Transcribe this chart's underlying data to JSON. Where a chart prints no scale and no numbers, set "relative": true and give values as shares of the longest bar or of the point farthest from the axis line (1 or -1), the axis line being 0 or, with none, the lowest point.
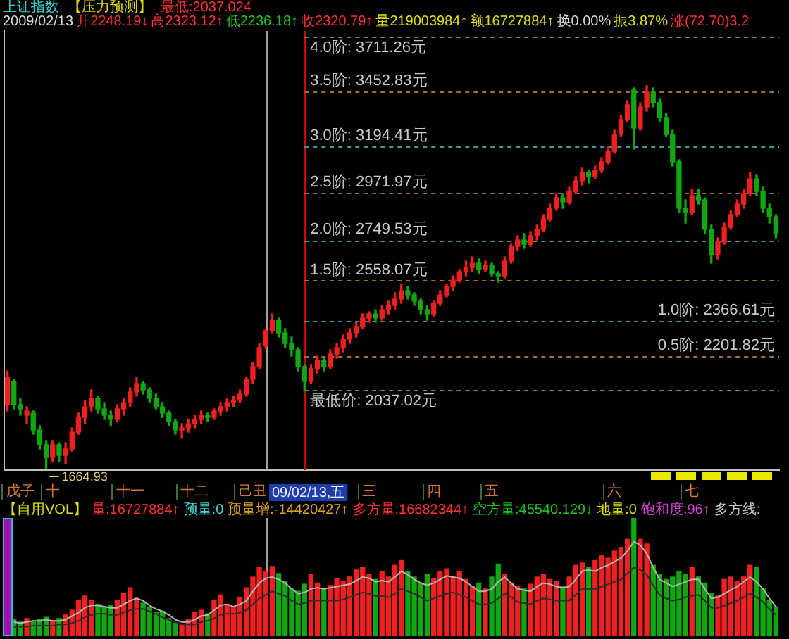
{
  "chart_data": [
    {
      "type": "candlestick",
      "title": "上证指数",
      "annotations": [
        "【压力预测】",
        "最低:2037.024",
        "2009/02/13",
        "开2248.19↓",
        "高2323.12↑",
        "低2236.18↑",
        "收2320.79↑",
        "量219003984↑",
        "额16727884↑",
        "换0.00%",
        "振3.87%",
        "涨(72.70)3.2",
        "09/02/13,五",
        "1664.93"
      ],
      "categories": [
        null,
        null,
        "戊子",
        null,
        null,
        null,
        null,
        "十",
        null,
        null,
        null,
        null,
        null,
        null,
        null,
        null,
        null,
        null,
        null,
        "十一",
        null,
        null,
        null,
        null,
        null,
        null,
        null,
        null,
        null,
        "十二",
        null,
        null,
        null,
        null,
        null,
        null,
        null,
        null,
        "己丑",
        null,
        null,
        null,
        null,
        null,
        null,
        null,
        null,
        null,
        null,
        null,
        null,
        null,
        null,
        null,
        null,
        null,
        "三",
        null,
        null,
        null,
        null,
        null,
        null,
        null,
        null,
        null,
        "四",
        null,
        null,
        null,
        null,
        null,
        null,
        null,
        null,
        "五",
        null,
        null,
        null,
        null,
        null,
        null,
        null,
        null,
        null,
        null,
        null,
        null,
        null,
        null,
        null,
        null,
        null,
        null,
        "六",
        null,
        null,
        null,
        null,
        null,
        null,
        null,
        null,
        null,
        null,
        null,
        "七",
        null,
        null,
        null,
        null,
        null,
        null,
        null,
        null,
        null,
        null,
        null,
        null,
        null
      ],
      "ohlc": [
        [
          1970,
          2130,
          1940,
          2100
        ],
        [
          2080,
          2090,
          1950,
          1970
        ],
        [
          1970,
          2000,
          1920,
          1950
        ],
        [
          1920,
          1960,
          1880,
          1940
        ],
        [
          1930,
          1940,
          1830,
          1850
        ],
        [
          1850,
          1870,
          1760,
          1780
        ],
        [
          1780,
          1800,
          1664.93,
          1720
        ],
        [
          1720,
          1800,
          1700,
          1780
        ],
        [
          1780,
          1790,
          1700,
          1730
        ],
        [
          1730,
          1790,
          1690,
          1760
        ],
        [
          1760,
          1860,
          1750,
          1840
        ],
        [
          1840,
          1930,
          1830,
          1910
        ],
        [
          1910,
          1990,
          1880,
          1960
        ],
        [
          1960,
          2040,
          1940,
          2000
        ],
        [
          2000,
          2010,
          1930,
          1950
        ],
        [
          1950,
          1980,
          1900,
          1920
        ],
        [
          1920,
          1940,
          1870,
          1900
        ],
        [
          1900,
          1970,
          1890,
          1950
        ],
        [
          1950,
          2000,
          1920,
          1980
        ],
        [
          1980,
          2050,
          1960,
          2030
        ],
        [
          2030,
          2100,
          2010,
          2070
        ],
        [
          2070,
          2080,
          2020,
          2040
        ],
        [
          2040,
          2050,
          1980,
          2000
        ],
        [
          2000,
          2020,
          1950,
          1960
        ],
        [
          1960,
          1980,
          1910,
          1930
        ],
        [
          1930,
          1940,
          1870,
          1890
        ],
        [
          1890,
          1900,
          1830,
          1850
        ],
        [
          1850,
          1880,
          1810,
          1860
        ],
        [
          1860,
          1900,
          1840,
          1880
        ],
        [
          1880,
          1920,
          1860,
          1900
        ],
        [
          1900,
          1940,
          1880,
          1920
        ],
        [
          1920,
          1930,
          1890,
          1910
        ],
        [
          1910,
          1950,
          1900,
          1940
        ],
        [
          1940,
          1980,
          1920,
          1960
        ],
        [
          1960,
          2000,
          1940,
          1980
        ],
        [
          1980,
          2010,
          1960,
          1990
        ],
        [
          1990,
          2040,
          1980,
          2020
        ],
        [
          2020,
          2100,
          2010,
          2090
        ],
        [
          2090,
          2170,
          2070,
          2150
        ],
        [
          2150,
          2260,
          2140,
          2240
        ],
        [
          2248.19,
          2323.12,
          2236.18,
          2320.79
        ],
        [
          2320,
          2400,
          2310,
          2370
        ],
        [
          2370,
          2380,
          2290,
          2310
        ],
        [
          2310,
          2330,
          2240,
          2260
        ],
        [
          2260,
          2290,
          2200,
          2230
        ],
        [
          2230,
          2240,
          2130,
          2150
        ],
        [
          2150,
          2160,
          2037.02,
          2080
        ],
        [
          2080,
          2160,
          2070,
          2140
        ],
        [
          2140,
          2200,
          2120,
          2180
        ],
        [
          2180,
          2190,
          2130,
          2150
        ],
        [
          2150,
          2230,
          2140,
          2210
        ],
        [
          2210,
          2260,
          2190,
          2240
        ],
        [
          2240,
          2300,
          2220,
          2280
        ],
        [
          2280,
          2330,
          2260,
          2310
        ],
        [
          2310,
          2360,
          2290,
          2340
        ],
        [
          2340,
          2400,
          2330,
          2380
        ],
        [
          2380,
          2410,
          2360,
          2400
        ],
        [
          2400,
          2420,
          2360,
          2380
        ],
        [
          2380,
          2440,
          2370,
          2420
        ],
        [
          2420,
          2460,
          2400,
          2440
        ],
        [
          2440,
          2500,
          2420,
          2470
        ],
        [
          2470,
          2540,
          2450,
          2510
        ],
        [
          2510,
          2530,
          2470,
          2490
        ],
        [
          2490,
          2500,
          2440,
          2460
        ],
        [
          2460,
          2470,
          2400,
          2420
        ],
        [
          2420,
          2440,
          2370,
          2400
        ],
        [
          2400,
          2460,
          2390,
          2450
        ],
        [
          2450,
          2510,
          2440,
          2490
        ],
        [
          2490,
          2540,
          2480,
          2530
        ],
        [
          2530,
          2580,
          2510,
          2560
        ],
        [
          2560,
          2610,
          2550,
          2600
        ],
        [
          2600,
          2650,
          2580,
          2620
        ],
        [
          2620,
          2670,
          2600,
          2640
        ],
        [
          2640,
          2660,
          2590,
          2610
        ],
        [
          2610,
          2650,
          2600,
          2630
        ],
        [
          2630,
          2640,
          2580,
          2590
        ],
        [
          2590,
          2600,
          2550,
          2580
        ],
        [
          2580,
          2670,
          2570,
          2650
        ],
        [
          2650,
          2730,
          2640,
          2720
        ],
        [
          2720,
          2770,
          2700,
          2750
        ],
        [
          2750,
          2780,
          2710,
          2730
        ],
        [
          2730,
          2790,
          2720,
          2770
        ],
        [
          2770,
          2820,
          2750,
          2800
        ],
        [
          2800,
          2870,
          2790,
          2850
        ],
        [
          2850,
          2920,
          2840,
          2900
        ],
        [
          2900,
          2970,
          2890,
          2950
        ],
        [
          2950,
          2970,
          2900,
          2930
        ],
        [
          2930,
          3000,
          2920,
          2980
        ],
        [
          2980,
          3050,
          2970,
          3030
        ],
        [
          3030,
          3090,
          3010,
          3070
        ],
        [
          3070,
          3080,
          3020,
          3050
        ],
        [
          3050,
          3100,
          3040,
          3080
        ],
        [
          3080,
          3140,
          3070,
          3120
        ],
        [
          3120,
          3190,
          3110,
          3170
        ],
        [
          3170,
          3270,
          3160,
          3250
        ],
        [
          3250,
          3340,
          3240,
          3320
        ],
        [
          3320,
          3410,
          3310,
          3390
        ],
        [
          3460,
          3470,
          3180,
          3280
        ],
        [
          3280,
          3400,
          3270,
          3380
        ],
        [
          3380,
          3480,
          3360,
          3450
        ],
        [
          3450,
          3470,
          3380,
          3400
        ],
        [
          3400,
          3420,
          3310,
          3330
        ],
        [
          3330,
          3350,
          3240,
          3250
        ],
        [
          3250,
          3270,
          3100,
          3120
        ],
        [
          3120,
          3130,
          2880,
          2900
        ],
        [
          2900,
          2940,
          2830,
          2880
        ],
        [
          2880,
          2990,
          2870,
          2960
        ],
        [
          2960,
          2990,
          2920,
          2940
        ],
        [
          2940,
          2950,
          2780,
          2800
        ],
        [
          2800,
          2820,
          2640,
          2680
        ],
        [
          2680,
          2760,
          2660,
          2740
        ],
        [
          2740,
          2830,
          2730,
          2810
        ],
        [
          2810,
          2890,
          2800,
          2870
        ],
        [
          2870,
          2940,
          2860,
          2920
        ],
        [
          2920,
          2990,
          2900,
          2970
        ],
        [
          2970,
          3070,
          2960,
          3040
        ],
        [
          3040,
          3060,
          2960,
          2980
        ],
        [
          2980,
          3000,
          2880,
          2900
        ],
        [
          2900,
          2920,
          2830,
          2860
        ],
        [
          2860,
          2870,
          2760,
          2780
        ]
      ],
      "colors": [
        "#f02020",
        "#10a810",
        "#10a810",
        "#f02020",
        "#10a810",
        "#10a810",
        "#10a810",
        "#f02020",
        "#10a810",
        "#f02020",
        "#f02020",
        "#f02020",
        "#f02020",
        "#f02020",
        "#10a810",
        "#10a810",
        "#10a810",
        "#f02020",
        "#f02020",
        "#f02020",
        "#f02020",
        "#10a810",
        "#10a810",
        "#10a810",
        "#10a810",
        "#10a810",
        "#10a810",
        "#f02020",
        "#f02020",
        "#f02020",
        "#f02020",
        "#10a810",
        "#f02020",
        "#f02020",
        "#f02020",
        "#f02020",
        "#f02020",
        "#f02020",
        "#f02020",
        "#f02020",
        "#f02020",
        "#f02020",
        "#10a810",
        "#10a810",
        "#10a810",
        "#10a810",
        "#10a810",
        "#f02020",
        "#f02020",
        "#10a810",
        "#f02020",
        "#f02020",
        "#f02020",
        "#f02020",
        "#f02020",
        "#f02020",
        "#f02020",
        "#10a810",
        "#f02020",
        "#f02020",
        "#f02020",
        "#f02020",
        "#10a810",
        "#10a810",
        "#10a810",
        "#10a810",
        "#f02020",
        "#f02020",
        "#f02020",
        "#f02020",
        "#f02020",
        "#f02020",
        "#f02020",
        "#10a810",
        "#f02020",
        "#10a810",
        "#10a810",
        "#f02020",
        "#f02020",
        "#f02020",
        "#10a810",
        "#f02020",
        "#f02020",
        "#f02020",
        "#f02020",
        "#f02020",
        "#10a810",
        "#f02020",
        "#f02020",
        "#f02020",
        "#10a810",
        "#f02020",
        "#f02020",
        "#f02020",
        "#f02020",
        "#f02020",
        "#f02020",
        "#10a810",
        "#f02020",
        "#f02020",
        "#10a810",
        "#10a810",
        "#10a810",
        "#10a810",
        "#10a810",
        "#10a810",
        "#f02020",
        "#10a810",
        "#10a810",
        "#10a810",
        "#f02020",
        "#f02020",
        "#f02020",
        "#f02020",
        "#f02020",
        "#f02020",
        "#10a810",
        "#10a810",
        "#10a810",
        "#10a810"
      ],
      "ylim": [
        1660,
        3740
      ],
      "ref_lines": [
        {
          "axis": "y",
          "value": 3711.26,
          "label": "4.0阶: 3711.26元",
          "color": "#3a9a9a",
          "line_style": "dashed"
        },
        {
          "axis": "y",
          "value": 3452.83,
          "label": "3.5阶: 3452.83元",
          "color": "#a07030",
          "line_style": "dashed"
        },
        {
          "axis": "y",
          "value": 3194.41,
          "label": "3.0阶: 3194.41元",
          "color": "#3a9a9a",
          "line_style": "dashed"
        },
        {
          "axis": "y",
          "value": 2971.97,
          "label": "2.5阶: 2971.97元",
          "color": "#a07030",
          "line_style": "dashed"
        },
        {
          "axis": "y",
          "value": 2749.53,
          "label": "2.0阶: 2749.53元",
          "color": "#3a9a9a",
          "line_style": "dashed"
        },
        {
          "axis": "y",
          "value": 2558.07,
          "label": "1.5阶: 2558.07元",
          "color": "#a07030",
          "line_style": "dashed"
        },
        {
          "axis": "y",
          "value": 2366.61,
          "label": "1.0阶: 2366.61元",
          "color": "#3a9a9a",
          "line_style": "dashed"
        },
        {
          "axis": "y",
          "value": 2201.82,
          "label": "0.5阶: 2201.82元",
          "color": "#a07030",
          "line_style": "dashed"
        },
        {
          "axis": "y",
          "value": 2037.02,
          "label": "最低价: 2037.02元",
          "color": "#3a9a9a",
          "line_style": "dashed"
        }
      ],
      "tick_labels": "x"
    },
    {
      "type": "bar",
      "title": "【自用VOL】",
      "annotations": [
        "量:16727884↑",
        "预量:0",
        "预量增:-14420427↑",
        "多方量:16682344↑",
        "空方量:45540.129↓",
        "地量:0",
        "饱和度:96↑",
        "多方线:"
      ],
      "categories": [
        null,
        null,
        "戊子",
        null,
        null,
        null,
        null,
        "十",
        null,
        null,
        null,
        null,
        null,
        null,
        null,
        null,
        null,
        null,
        null,
        "十一",
        null,
        null,
        null,
        null,
        null,
        null,
        null,
        null,
        null,
        "十二",
        null,
        null,
        null,
        null,
        null,
        null,
        null,
        null,
        "己丑",
        null,
        null,
        null,
        null,
        null,
        null,
        null,
        null,
        null,
        null,
        null,
        null,
        null,
        null,
        null,
        null,
        null,
        "三",
        null,
        null,
        null,
        null,
        null,
        null,
        null,
        null,
        null,
        "四",
        null,
        null,
        null,
        null,
        null,
        null,
        null,
        null,
        "五",
        null,
        null,
        null,
        null,
        null,
        null,
        null,
        null,
        null,
        null,
        null,
        null,
        null,
        null,
        null,
        null,
        null,
        null,
        "六",
        null,
        null,
        null,
        null,
        null,
        null,
        null,
        null,
        null,
        null,
        null,
        "七",
        null,
        null,
        null,
        null,
        null,
        null,
        null,
        null,
        null,
        null,
        null,
        null,
        null
      ],
      "series": [
        {
          "values": [
            null,
            0.14,
            0.12,
            0.15,
            0.12,
            0.14,
            0.16,
            0.13,
            0.15,
            0.18,
            0.22,
            0.3,
            0.34,
            0.3,
            0.27,
            0.24,
            0.26,
            0.3,
            0.36,
            0.41,
            0.32,
            0.28,
            0.24,
            0.2,
            0.21,
            0.15,
            0.11,
            0.1,
            0.14,
            0.2,
            0.22,
            0.19,
            0.3,
            0.35,
            0.27,
            0.24,
            0.33,
            0.41,
            0.5,
            0.58,
            0.55,
            0.59,
            0.53,
            0.46,
            0.4,
            0.38,
            0.44,
            0.52,
            0.45,
            0.4,
            0.43,
            0.49,
            0.46,
            0.5,
            0.56,
            0.58,
            0.52,
            0.48,
            0.55,
            0.5,
            0.6,
            0.64,
            0.55,
            0.5,
            0.45,
            0.52,
            0.49,
            0.55,
            0.57,
            0.5,
            0.55,
            0.48,
            0.42,
            0.45,
            0.4,
            0.5,
            0.61,
            0.52,
            0.45,
            0.42,
            0.4,
            0.44,
            0.5,
            0.52,
            0.48,
            0.46,
            0.42,
            0.5,
            0.6,
            0.62,
            0.58,
            0.64,
            0.68,
            0.66,
            0.72,
            0.75,
            0.82,
            1,
            0.82,
            0.78,
            0.6,
            0.52,
            0.48,
            0.5,
            0.55,
            0.52,
            0.58,
            0.5,
            0.45,
            0.36,
            0.34,
            0.48,
            0.5,
            0.46,
            0.5,
            0.6,
            0.58,
            0.4,
            0.3,
            0.25
          ],
          "colors": [
            "#f02020",
            "#10a810",
            "#10a810",
            "#f02020",
            "#10a810",
            "#10a810",
            "#10a810",
            "#f02020",
            "#10a810",
            "#f02020",
            "#f02020",
            "#f02020",
            "#f02020",
            "#f02020",
            "#10a810",
            "#10a810",
            "#10a810",
            "#f02020",
            "#f02020",
            "#f02020",
            "#f02020",
            "#10a810",
            "#10a810",
            "#10a810",
            "#10a810",
            "#10a810",
            "#10a810",
            "#f02020",
            "#f02020",
            "#f02020",
            "#f02020",
            "#10a810",
            "#f02020",
            "#f02020",
            "#f02020",
            "#f02020",
            "#f02020",
            "#f02020",
            "#f02020",
            "#f02020",
            "#f02020",
            "#f02020",
            "#10a810",
            "#10a810",
            "#10a810",
            "#10a810",
            "#10a810",
            "#f02020",
            "#f02020",
            "#10a810",
            "#f02020",
            "#f02020",
            "#f02020",
            "#f02020",
            "#f02020",
            "#f02020",
            "#f02020",
            "#10a810",
            "#f02020",
            "#f02020",
            "#f02020",
            "#f02020",
            "#10a810",
            "#10a810",
            "#10a810",
            "#10a810",
            "#f02020",
            "#f02020",
            "#f02020",
            "#f02020",
            "#f02020",
            "#f02020",
            "#f02020",
            "#10a810",
            "#f02020",
            "#10a810",
            "#10a810",
            "#f02020",
            "#f02020",
            "#f02020",
            "#10a810",
            "#f02020",
            "#f02020",
            "#f02020",
            "#f02020",
            "#f02020",
            "#10a810",
            "#f02020",
            "#f02020",
            "#f02020",
            "#10a810",
            "#f02020",
            "#f02020",
            "#f02020",
            "#f02020",
            "#f02020",
            "#f02020",
            "#10a810",
            "#f02020",
            "#f02020",
            "#10a810",
            "#10a810",
            "#10a810",
            "#10a810",
            "#10a810",
            "#10a810",
            "#f02020",
            "#10a810",
            "#10a810",
            "#10a810",
            "#f02020",
            "#f02020",
            "#f02020",
            "#f02020",
            "#f02020",
            "#f02020",
            "#10a810",
            "#10a810",
            "#10a810",
            "#10a810"
          ]
        },
        {
          "type": "line",
          "color": "#b4b4b4",
          "values": [
            null,
            0.12,
            0.11,
            0.12,
            0.13,
            0.13,
            0.14,
            0.13,
            0.13,
            0.14,
            0.17,
            0.2,
            0.24,
            0.26,
            0.26,
            0.25,
            0.24,
            0.24,
            0.27,
            0.3,
            0.32,
            0.3,
            0.26,
            0.23,
            0.21,
            0.18,
            0.14,
            0.12,
            0.12,
            0.14,
            0.17,
            0.18,
            0.22,
            0.26,
            0.27,
            0.25,
            0.27,
            0.3,
            0.38,
            0.45,
            0.49,
            0.5,
            0.48,
            0.45,
            0.4,
            0.36,
            0.37,
            0.4,
            0.41,
            0.4,
            0.41,
            0.42,
            0.43,
            0.44,
            0.47,
            0.5,
            0.49,
            0.46,
            0.47,
            0.46,
            0.5,
            0.55,
            0.52,
            0.48,
            0.45,
            0.43,
            0.45,
            0.48,
            0.51,
            0.5,
            0.49,
            0.46,
            0.42,
            0.38,
            0.38,
            0.4,
            0.46,
            0.5,
            0.45,
            0.4,
            0.39,
            0.38,
            0.42,
            0.45,
            0.44,
            0.42,
            0.41,
            0.42,
            0.48,
            0.55,
            0.56,
            0.55,
            0.58,
            0.6,
            0.63,
            0.66,
            0.72,
            0.8,
            0.77,
            0.7,
            0.58,
            0.48,
            0.45,
            0.42,
            0.44,
            0.46,
            0.48,
            0.48,
            0.4,
            0.32,
            0.33,
            0.36,
            0.39,
            0.42,
            0.46,
            0.5,
            0.46,
            0.4,
            0.32,
            0.25
          ]
        },
        {
          "type": "line",
          "color": "#2e2e2e",
          "values": [
            null,
            0.08,
            0.08,
            0.08,
            0.09,
            0.09,
            0.09,
            0.09,
            0.1,
            0.1,
            0.11,
            0.13,
            0.16,
            0.18,
            0.19,
            0.19,
            0.18,
            0.18,
            0.2,
            0.22,
            0.23,
            0.23,
            0.21,
            0.19,
            0.16,
            0.14,
            0.12,
            0.1,
            0.1,
            0.1,
            0.12,
            0.13,
            0.15,
            0.18,
            0.19,
            0.19,
            0.2,
            0.22,
            0.27,
            0.32,
            0.35,
            0.38,
            0.36,
            0.34,
            0.3,
            0.27,
            0.28,
            0.3,
            0.3,
            0.3,
            0.3,
            0.3,
            0.31,
            0.33,
            0.35,
            0.37,
            0.36,
            0.34,
            0.34,
            0.33,
            0.36,
            0.4,
            0.38,
            0.36,
            0.33,
            0.3,
            0.32,
            0.34,
            0.36,
            0.37,
            0.35,
            0.33,
            0.3,
            0.27,
            0.27,
            0.28,
            0.32,
            0.36,
            0.33,
            0.29,
            0.28,
            0.27,
            0.3,
            0.32,
            0.31,
            0.3,
            0.3,
            0.3,
            0.35,
            0.4,
            0.4,
            0.4,
            0.42,
            0.44,
            0.46,
            0.48,
            0.53,
            0.58,
            0.56,
            0.52,
            0.43,
            0.35,
            0.32,
            0.3,
            0.31,
            0.33,
            0.34,
            0.35,
            0.3,
            0.24,
            0.24,
            0.26,
            0.28,
            0.3,
            0.33,
            0.36,
            0.33,
            0.29,
            0.23,
            0.18
          ]
        }
      ],
      "relative": true,
      "tick_labels": false
    }
  ]
}
